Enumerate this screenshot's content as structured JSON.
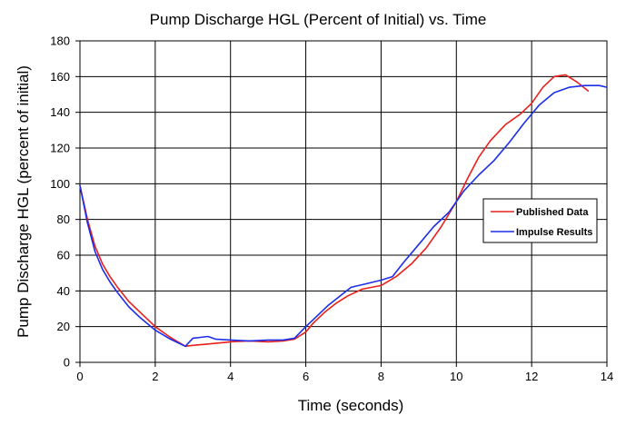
{
  "chart_data": {
    "type": "line",
    "title": "Pump Discharge HGL (Percent of Initial) vs. Time",
    "xlabel": "Time (seconds)",
    "ylabel": "Pump Discharge HGL (percent of initial)",
    "xlim": [
      0,
      14
    ],
    "ylim": [
      0,
      180
    ],
    "xticks": [
      0,
      2,
      4,
      6,
      8,
      10,
      12,
      14
    ],
    "yticks": [
      0,
      20,
      40,
      60,
      80,
      100,
      120,
      140,
      160,
      180
    ],
    "grid": true,
    "legend_position": "right",
    "series": [
      {
        "name": "Published Data",
        "color": "#e8201c",
        "x": [
          0,
          0.2,
          0.4,
          0.6,
          0.8,
          1.0,
          1.3,
          1.6,
          2.0,
          2.4,
          2.8,
          3.0,
          3.5,
          4.0,
          4.5,
          5.0,
          5.4,
          5.7,
          6.0,
          6.2,
          6.5,
          6.8,
          7.1,
          7.5,
          8.0,
          8.4,
          8.8,
          9.2,
          9.6,
          10.0,
          10.3,
          10.6,
          10.9,
          11.3,
          11.7,
          12.0,
          12.3,
          12.6,
          12.9,
          13.2,
          13.5
        ],
        "y": [
          99,
          80,
          65,
          55,
          48,
          42,
          34,
          28,
          20,
          14,
          9,
          9.5,
          10.5,
          11.5,
          12,
          11.5,
          12,
          13,
          17,
          22,
          28,
          33,
          37,
          41,
          43,
          48,
          55,
          64,
          76,
          90,
          103,
          115,
          124,
          133,
          139,
          145,
          154,
          160,
          161,
          157,
          152
        ]
      },
      {
        "name": "Impulse Results",
        "color": "#1c2ee8",
        "x": [
          0,
          0.2,
          0.4,
          0.6,
          0.8,
          1.0,
          1.3,
          1.6,
          2.0,
          2.4,
          2.8,
          3.0,
          3.2,
          3.4,
          3.6,
          4.0,
          4.5,
          5.0,
          5.4,
          5.7,
          6.0,
          6.3,
          6.6,
          6.9,
          7.2,
          7.6,
          8.0,
          8.3,
          8.6,
          9.0,
          9.4,
          9.8,
          10.2,
          10.6,
          11.0,
          11.4,
          11.8,
          12.2,
          12.6,
          13.0,
          13.4,
          13.8,
          14.0
        ],
        "y": [
          99,
          78,
          62,
          52,
          45,
          39,
          31,
          25,
          18,
          13,
          9,
          13.5,
          14,
          14.5,
          13,
          12.5,
          12,
          12.5,
          12.5,
          13.5,
          20,
          26,
          32,
          37,
          42,
          44,
          46,
          48,
          56,
          66,
          76,
          84,
          96,
          105,
          113,
          123,
          134,
          144,
          151,
          154,
          155,
          155,
          154
        ]
      }
    ]
  }
}
